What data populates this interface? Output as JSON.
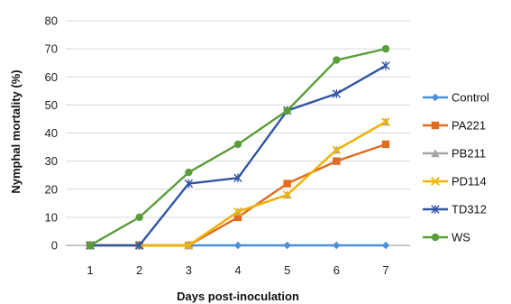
{
  "chart_data": {
    "type": "line",
    "xlabel": "Days post-inoculation",
    "ylabel": "Nymphal mortality (%)",
    "x": [
      1,
      2,
      3,
      4,
      5,
      6,
      7
    ],
    "ylim": [
      0,
      80
    ],
    "yticks": [
      0,
      10,
      20,
      30,
      40,
      50,
      60,
      70,
      80
    ],
    "grid": "horizontal",
    "legend_position": "right",
    "series": [
      {
        "name": "Control",
        "color": "#4a90d9",
        "marker": "diamond",
        "values": [
          0,
          0,
          0,
          0,
          0,
          0,
          0
        ]
      },
      {
        "name": "PA221",
        "color": "#e06c1e",
        "marker": "square",
        "values": [
          0,
          0,
          0,
          10,
          22,
          30,
          36
        ]
      },
      {
        "name": "PB211",
        "color": "#a5a5a5",
        "marker": "triangle",
        "values": [
          0,
          0,
          0,
          12,
          18,
          34,
          44
        ]
      },
      {
        "name": "PD114",
        "color": "#f2b400",
        "marker": "x",
        "values": [
          0,
          0,
          0,
          12,
          18,
          34,
          44
        ]
      },
      {
        "name": "TD312",
        "color": "#2f55a4",
        "marker": "star",
        "values": [
          0,
          0,
          22,
          24,
          48,
          54,
          64
        ]
      },
      {
        "name": "WS",
        "color": "#5a9e3a",
        "marker": "circle",
        "values": [
          0,
          10,
          26,
          36,
          48,
          66,
          70
        ]
      }
    ]
  }
}
